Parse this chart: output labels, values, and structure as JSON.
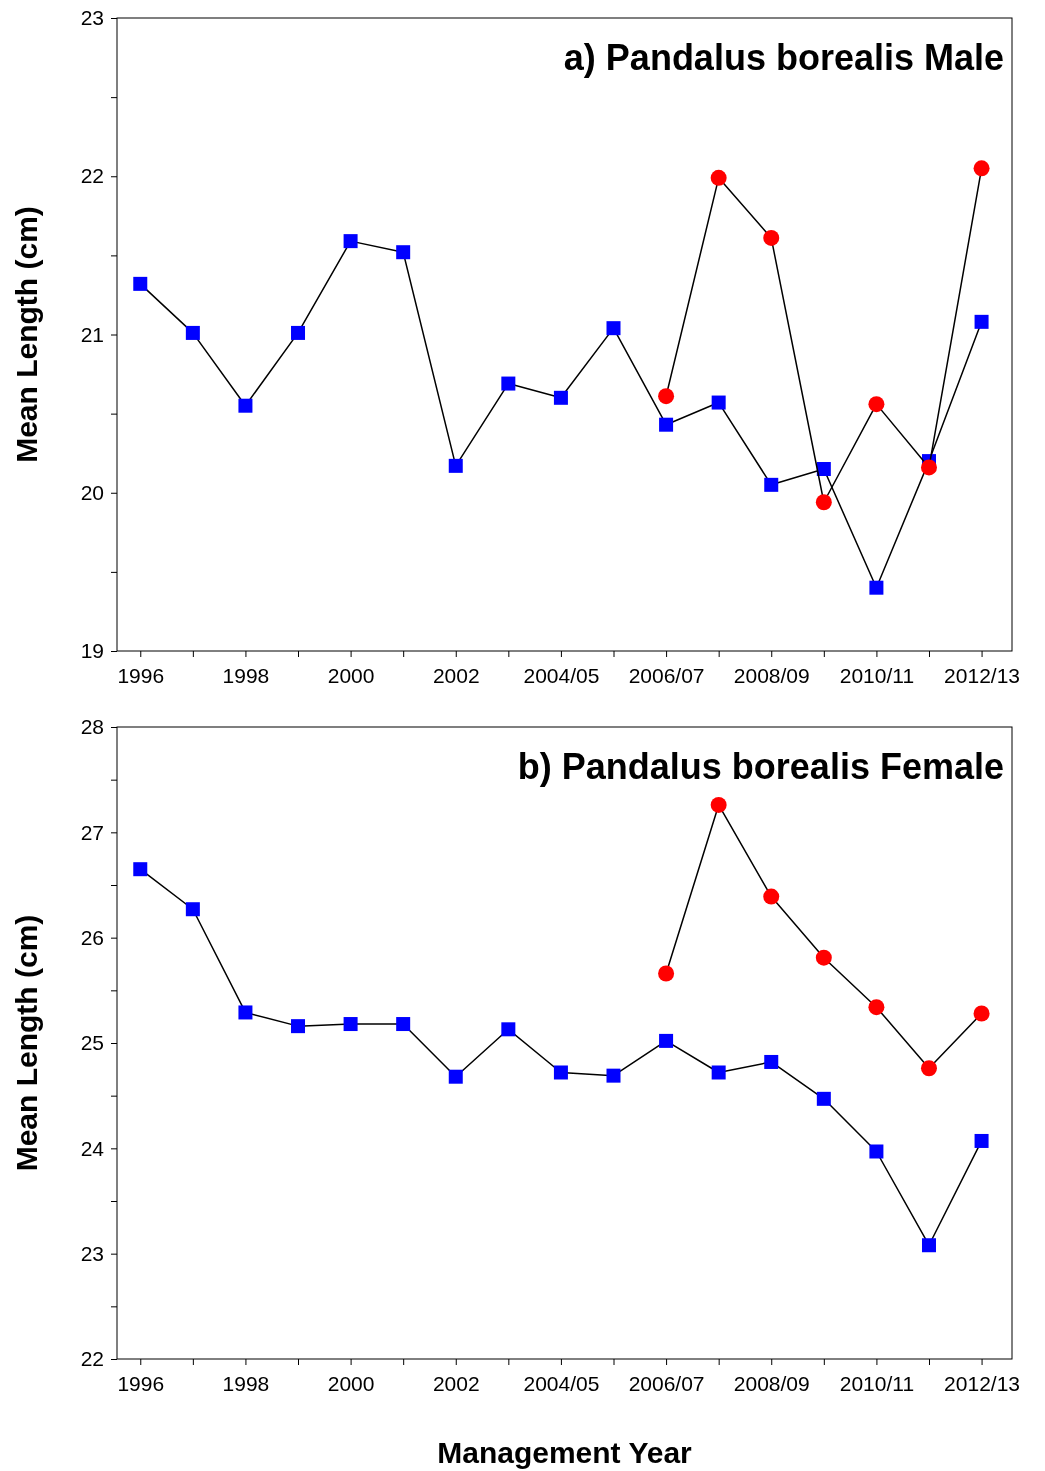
{
  "chart_data": [
    {
      "type": "line",
      "title": "a) Pandalus borealis Male",
      "ylabel": "Mean Length (cm)",
      "categories": [
        "1996",
        null,
        "1998",
        null,
        "2000",
        null,
        "2002",
        null,
        "2004/05",
        null,
        "2006/07",
        null,
        "2008/09",
        null,
        "2010/11",
        null,
        "2012/13"
      ],
      "series": [
        {
          "color": "#0000ff",
          "marker": "square",
          "values": [
            21.32,
            21.01,
            20.55,
            21.01,
            21.59,
            21.52,
            20.17,
            20.69,
            20.6,
            21.04,
            20.43,
            20.57,
            20.05,
            20.15,
            19.4,
            20.2,
            21.08
          ]
        },
        {
          "color": "#ff0000",
          "marker": "circle",
          "values": [
            null,
            null,
            null,
            null,
            null,
            null,
            null,
            null,
            null,
            null,
            20.61,
            21.99,
            21.61,
            19.94,
            20.56,
            20.16,
            22.05
          ]
        }
      ],
      "ylim": [
        19,
        23
      ],
      "yticks": [
        19,
        {
          "value": 19.5,
          "label": null
        },
        20,
        {
          "value": 20.5,
          "label": null
        },
        21,
        {
          "value": 21.5,
          "label": null
        },
        22,
        {
          "value": 22.5,
          "label": null
        },
        23
      ],
      "grid": false
    },
    {
      "type": "line",
      "title": "b) Pandalus borealis Female",
      "ylabel": "Mean Length (cm)",
      "xlabel": "Management Year",
      "categories": [
        "1996",
        null,
        "1998",
        null,
        "2000",
        null,
        "2002",
        null,
        "2004/05",
        null,
        "2006/07",
        null,
        "2008/09",
        null,
        "2010/11",
        null,
        "2012/13"
      ],
      "series": [
        {
          "color": "#0000ff",
          "marker": "square",
          "values": [
            26.65,
            26.27,
            25.29,
            25.16,
            25.18,
            25.18,
            24.68,
            25.13,
            24.72,
            24.69,
            25.02,
            24.72,
            24.82,
            24.47,
            23.97,
            23.08,
            24.07
          ]
        },
        {
          "color": "#ff0000",
          "marker": "circle",
          "values": [
            null,
            null,
            null,
            null,
            null,
            null,
            null,
            null,
            null,
            null,
            25.66,
            27.26,
            26.39,
            25.81,
            25.34,
            24.76,
            25.28
          ]
        }
      ],
      "ylim": [
        22,
        28
      ],
      "yticks": [
        22,
        {
          "value": 22.5,
          "label": null
        },
        23,
        {
          "value": 23.5,
          "label": null
        },
        24,
        {
          "value": 24.5,
          "label": null
        },
        25,
        {
          "value": 25.5,
          "label": null
        },
        26,
        {
          "value": 26.5,
          "label": null
        },
        27,
        {
          "value": 27.5,
          "label": null
        },
        28
      ],
      "grid": false
    }
  ]
}
